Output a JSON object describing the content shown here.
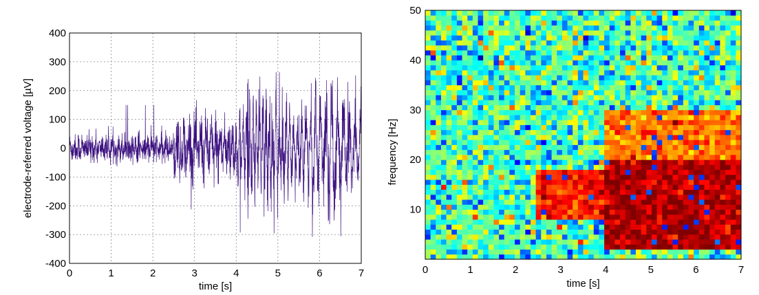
{
  "chart_data": [
    {
      "type": "line",
      "xlabel": "time [s]",
      "ylabel": "electrode-referred voltage [µV]",
      "xlim": [
        0,
        7
      ],
      "ylim": [
        -400,
        400
      ],
      "xticks": [
        "0",
        "1",
        "2",
        "3",
        "4",
        "5",
        "6",
        "7"
      ],
      "yticks": [
        "400",
        "300",
        "200",
        "100",
        "0",
        "-100",
        "-200",
        "-300",
        "-400"
      ],
      "grid": true,
      "color": "#3d1280",
      "sample_rate_hz": 250,
      "segments": [
        {
          "t_start": 0.0,
          "t_end": 2.5,
          "amplitude_uV": 40,
          "peak_uV": 150
        },
        {
          "t_start": 2.5,
          "t_end": 4.0,
          "amplitude_uV": 70,
          "peak_uV": 130
        },
        {
          "t_start": 4.0,
          "t_end": 7.0,
          "amplitude_uV": 130,
          "peak_uV": 255,
          "trough_uV": -320
        }
      ]
    },
    {
      "type": "heatmap",
      "xlabel": "time [s]",
      "ylabel": "frequency [Hz]",
      "xlim": [
        0,
        7
      ],
      "ylim": [
        0,
        50
      ],
      "xticks": [
        "0",
        "1",
        "2",
        "3",
        "4",
        "5",
        "6",
        "7"
      ],
      "yticks": [
        "50",
        "40",
        "30",
        "20",
        "10"
      ],
      "colormap": "jet",
      "grid": false,
      "high_power_regions": [
        {
          "t_start": 2.5,
          "t_end": 4.0,
          "f_low": 8,
          "f_high": 18,
          "level": 0.85
        },
        {
          "t_start": 4.0,
          "t_end": 7.0,
          "f_low": 2,
          "f_high": 20,
          "level": 0.95
        },
        {
          "t_start": 4.0,
          "t_end": 7.0,
          "f_low": 20,
          "f_high": 30,
          "level": 0.75
        }
      ]
    }
  ]
}
